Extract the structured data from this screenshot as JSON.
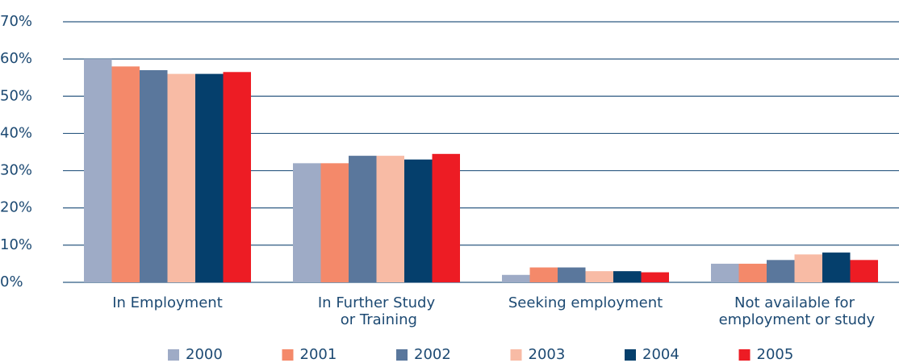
{
  "chart_data": {
    "type": "bar",
    "categories": [
      "In Employment",
      "In Further Study\nor Training",
      "Seeking employment",
      "Not available for\nemployment or study"
    ],
    "series": [
      {
        "name": "2000",
        "color": "#9eabc6",
        "values": [
          60,
          32,
          2,
          5
        ]
      },
      {
        "name": "2001",
        "color": "#f4896a",
        "values": [
          58,
          32,
          4,
          5
        ]
      },
      {
        "name": "2002",
        "color": "#5a779c",
        "values": [
          57,
          34,
          4,
          6
        ]
      },
      {
        "name": "2003",
        "color": "#f8bba5",
        "values": [
          56,
          34,
          3,
          7.5
        ]
      },
      {
        "name": "2004",
        "color": "#053f6c",
        "values": [
          56,
          33,
          3,
          8
        ]
      },
      {
        "name": "2005",
        "color": "#ed1c24",
        "values": [
          56.5,
          34.5,
          2.7,
          6
        ]
      }
    ],
    "ylim": [
      0,
      70
    ],
    "yticks": [
      {
        "value": 0,
        "label": "0%"
      },
      {
        "value": 10,
        "label": "10%"
      },
      {
        "value": 20,
        "label": "20%"
      },
      {
        "value": 30,
        "label": "30%"
      },
      {
        "value": 40,
        "label": "40%"
      },
      {
        "value": 50,
        "label": "50%"
      },
      {
        "value": 60,
        "label": "60%"
      },
      {
        "value": 70,
        "label": "70%"
      }
    ],
    "grid": true,
    "legend": "bottom"
  }
}
